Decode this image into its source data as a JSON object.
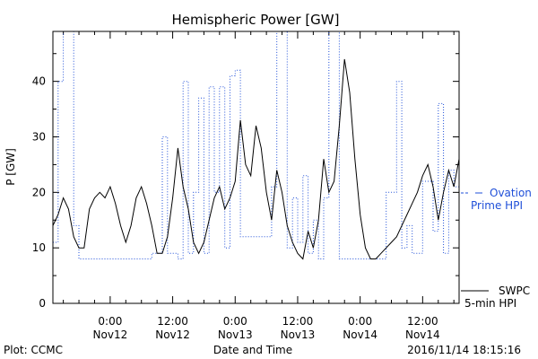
{
  "chart_data": {
    "type": "line",
    "title": "Hemispheric Power [GW]",
    "ylabel": "P [GW]",
    "xlabel": "Date and Time",
    "ylim": [
      0,
      49
    ],
    "xlim": [
      "2016-11-11 13:00",
      "2016-11-14 19:00"
    ],
    "yticks": [
      0,
      10,
      20,
      30,
      40
    ],
    "yticks_minor": [
      5,
      15,
      25,
      35,
      45
    ],
    "xticks": [
      {
        "x": "2016-11-12 00:00",
        "line1": "0:00",
        "line2": "Nov12"
      },
      {
        "x": "2016-11-12 12:00",
        "line1": "12:00",
        "line2": "Nov12"
      },
      {
        "x": "2016-11-13 00:00",
        "line1": "0:00",
        "line2": "Nov13"
      },
      {
        "x": "2016-11-13 12:00",
        "line1": "12:00",
        "line2": "Nov13"
      },
      {
        "x": "2016-11-14 00:00",
        "line1": "0:00",
        "line2": "Nov14"
      },
      {
        "x": "2016-11-14 12:00",
        "line1": "12:00",
        "line2": "Nov14"
      }
    ],
    "series": [
      {
        "name": "Ovation Prime HPI",
        "legend_lines": [
          "Ovation",
          "Prime HPI"
        ],
        "color": "#1f4fd8",
        "style": "dotted-step",
        "points": [
          [
            "2016-11-11 13:00",
            11
          ],
          [
            "2016-11-11 14:00",
            40
          ],
          [
            "2016-11-11 15:00",
            49
          ],
          [
            "2016-11-11 16:00",
            49
          ],
          [
            "2016-11-11 17:00",
            14
          ],
          [
            "2016-11-11 18:00",
            8
          ],
          [
            "2016-11-11 20:00",
            8
          ],
          [
            "2016-11-11 22:00",
            8
          ],
          [
            "2016-11-12 00:00",
            8
          ],
          [
            "2016-11-12 02:00",
            8
          ],
          [
            "2016-11-12 04:00",
            8
          ],
          [
            "2016-11-12 06:00",
            8
          ],
          [
            "2016-11-12 08:00",
            9
          ],
          [
            "2016-11-12 10:00",
            30
          ],
          [
            "2016-11-12 11:00",
            9
          ],
          [
            "2016-11-12 13:00",
            8
          ],
          [
            "2016-11-12 14:00",
            40
          ],
          [
            "2016-11-12 15:00",
            9
          ],
          [
            "2016-11-12 16:00",
            20
          ],
          [
            "2016-11-12 17:00",
            37
          ],
          [
            "2016-11-12 18:00",
            9
          ],
          [
            "2016-11-12 19:00",
            39
          ],
          [
            "2016-11-12 20:00",
            20
          ],
          [
            "2016-11-12 21:00",
            39
          ],
          [
            "2016-11-12 22:00",
            10
          ],
          [
            "2016-11-12 23:00",
            41
          ],
          [
            "2016-11-13 00:00",
            42
          ],
          [
            "2016-11-13 01:00",
            12
          ],
          [
            "2016-11-13 03:00",
            12
          ],
          [
            "2016-11-13 05:00",
            12
          ],
          [
            "2016-11-13 07:00",
            21
          ],
          [
            "2016-11-13 08:00",
            49
          ],
          [
            "2016-11-13 09:00",
            49
          ],
          [
            "2016-11-13 10:00",
            10
          ],
          [
            "2016-11-13 11:00",
            19
          ],
          [
            "2016-11-13 12:00",
            11
          ],
          [
            "2016-11-13 13:00",
            23
          ],
          [
            "2016-11-13 14:00",
            9
          ],
          [
            "2016-11-13 15:00",
            15
          ],
          [
            "2016-11-13 16:00",
            8
          ],
          [
            "2016-11-13 17:00",
            19
          ],
          [
            "2016-11-13 18:00",
            49
          ],
          [
            "2016-11-13 19:00",
            49
          ],
          [
            "2016-11-13 20:00",
            8
          ],
          [
            "2016-11-13 22:00",
            8
          ],
          [
            "2016-11-14 00:00",
            8
          ],
          [
            "2016-11-14 02:00",
            8
          ],
          [
            "2016-11-14 05:00",
            20
          ],
          [
            "2016-11-14 07:00",
            40
          ],
          [
            "2016-11-14 08:00",
            10
          ],
          [
            "2016-11-14 09:00",
            14
          ],
          [
            "2016-11-14 10:00",
            9
          ],
          [
            "2016-11-14 12:00",
            22
          ],
          [
            "2016-11-14 14:00",
            13
          ],
          [
            "2016-11-14 15:00",
            36
          ],
          [
            "2016-11-14 16:00",
            9
          ],
          [
            "2016-11-14 17:00",
            24
          ],
          [
            "2016-11-14 18:00",
            21
          ],
          [
            "2016-11-14 19:00",
            11
          ]
        ]
      },
      {
        "name": "SWPC 5-min HPI",
        "legend_lines": [
          "SWPC",
          "5-min HPI"
        ],
        "color": "#000000",
        "style": "solid",
        "points": [
          [
            "2016-11-11 13:00",
            14
          ],
          [
            "2016-11-11 14:00",
            16
          ],
          [
            "2016-11-11 15:00",
            19
          ],
          [
            "2016-11-11 16:00",
            17
          ],
          [
            "2016-11-11 17:00",
            12
          ],
          [
            "2016-11-11 18:00",
            10
          ],
          [
            "2016-11-11 19:00",
            10
          ],
          [
            "2016-11-11 20:00",
            17
          ],
          [
            "2016-11-11 21:00",
            19
          ],
          [
            "2016-11-11 22:00",
            20
          ],
          [
            "2016-11-11 23:00",
            19
          ],
          [
            "2016-11-12 00:00",
            21
          ],
          [
            "2016-11-12 01:00",
            18
          ],
          [
            "2016-11-12 02:00",
            14
          ],
          [
            "2016-11-12 03:00",
            11
          ],
          [
            "2016-11-12 04:00",
            14
          ],
          [
            "2016-11-12 05:00",
            19
          ],
          [
            "2016-11-12 06:00",
            21
          ],
          [
            "2016-11-12 07:00",
            18
          ],
          [
            "2016-11-12 08:00",
            14
          ],
          [
            "2016-11-12 09:00",
            9
          ],
          [
            "2016-11-12 10:00",
            9
          ],
          [
            "2016-11-12 11:00",
            12
          ],
          [
            "2016-11-12 12:00",
            19
          ],
          [
            "2016-11-12 13:00",
            28
          ],
          [
            "2016-11-12 14:00",
            21
          ],
          [
            "2016-11-12 15:00",
            17
          ],
          [
            "2016-11-12 16:00",
            11
          ],
          [
            "2016-11-12 17:00",
            9
          ],
          [
            "2016-11-12 18:00",
            11
          ],
          [
            "2016-11-12 19:00",
            15
          ],
          [
            "2016-11-12 20:00",
            19
          ],
          [
            "2016-11-12 21:00",
            21
          ],
          [
            "2016-11-12 22:00",
            17
          ],
          [
            "2016-11-12 23:00",
            19
          ],
          [
            "2016-11-13 00:00",
            22
          ],
          [
            "2016-11-13 01:00",
            33
          ],
          [
            "2016-11-13 02:00",
            25
          ],
          [
            "2016-11-13 03:00",
            23
          ],
          [
            "2016-11-13 04:00",
            32
          ],
          [
            "2016-11-13 05:00",
            28
          ],
          [
            "2016-11-13 06:00",
            20
          ],
          [
            "2016-11-13 07:00",
            15
          ],
          [
            "2016-11-13 08:00",
            24
          ],
          [
            "2016-11-13 09:00",
            20
          ],
          [
            "2016-11-13 10:00",
            14
          ],
          [
            "2016-11-13 11:00",
            11
          ],
          [
            "2016-11-13 12:00",
            9
          ],
          [
            "2016-11-13 13:00",
            8
          ],
          [
            "2016-11-13 14:00",
            13
          ],
          [
            "2016-11-13 15:00",
            10
          ],
          [
            "2016-11-13 16:00",
            15
          ],
          [
            "2016-11-13 17:00",
            26
          ],
          [
            "2016-11-13 18:00",
            20
          ],
          [
            "2016-11-13 19:00",
            22
          ],
          [
            "2016-11-13 20:00",
            32
          ],
          [
            "2016-11-13 21:00",
            44
          ],
          [
            "2016-11-13 22:00",
            38
          ],
          [
            "2016-11-13 23:00",
            26
          ],
          [
            "2016-11-14 00:00",
            16
          ],
          [
            "2016-11-14 01:00",
            10
          ],
          [
            "2016-11-14 02:00",
            8
          ],
          [
            "2016-11-14 03:00",
            8
          ],
          [
            "2016-11-14 04:00",
            9
          ],
          [
            "2016-11-14 05:00",
            10
          ],
          [
            "2016-11-14 06:00",
            11
          ],
          [
            "2016-11-14 07:00",
            12
          ],
          [
            "2016-11-14 08:00",
            14
          ],
          [
            "2016-11-14 09:00",
            16
          ],
          [
            "2016-11-14 10:00",
            18
          ],
          [
            "2016-11-14 11:00",
            20
          ],
          [
            "2016-11-14 12:00",
            23
          ],
          [
            "2016-11-14 13:00",
            25
          ],
          [
            "2016-11-14 14:00",
            21
          ],
          [
            "2016-11-14 15:00",
            15
          ],
          [
            "2016-11-14 16:00",
            20
          ],
          [
            "2016-11-14 17:00",
            24
          ],
          [
            "2016-11-14 18:00",
            21
          ],
          [
            "2016-11-14 19:00",
            26
          ]
        ]
      }
    ],
    "legend_placement": "right"
  },
  "footer": {
    "left": "Plot: CCMC",
    "right": "2016/11/14 18:15:16"
  },
  "colors": {
    "ovation": "#1f4fd8",
    "swpc": "#000000",
    "axis": "#000000"
  }
}
